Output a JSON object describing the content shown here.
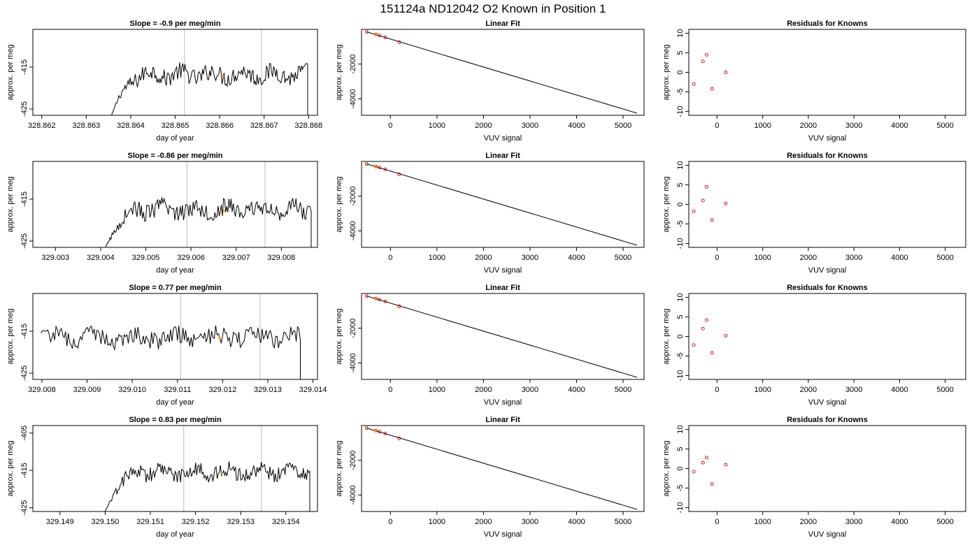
{
  "figure_title": "151124a     ND12042   O2 Known in Position  1",
  "colors": {
    "trace": "#000000",
    "marker": "#cc0000",
    "highlight": "#ff9900",
    "vline": "#bbbbbb"
  },
  "chart_data": [
    {
      "row": 1,
      "col": 1,
      "type": "line",
      "title": "Slope =  -0.9  per meg/min",
      "xlabel": "day of year",
      "ylabel": "approx. per meg",
      "xlim": [
        328.8618,
        328.8682
      ],
      "ylim": [
        -426.5,
        -406
      ],
      "xticks": [
        328.862,
        328.863,
        328.864,
        328.865,
        328.866,
        328.867,
        328.868
      ],
      "xtick_labels": [
        "328.862",
        "328.863",
        "328.864",
        "328.865",
        "328.866",
        "328.867",
        "328.868"
      ],
      "yticks": [
        -415,
        -425
      ],
      "ytick_labels": [
        "-415",
        "-425"
      ],
      "trace_start": 328.86357,
      "trace_end": 328.86798,
      "trace_min": -426.5,
      "trace_max": -411.5,
      "trace_mean": -416.8,
      "vlines": [
        328.86521,
        328.86694
      ],
      "highlight": {
        "x": 328.86608,
        "y": -417.2
      }
    },
    {
      "row": 1,
      "col": 2,
      "type": "scatter",
      "title": "Linear Fit",
      "xlabel": "VUV signal",
      "ylabel": "approx. per meg",
      "xlim": [
        -620,
        5450
      ],
      "ylim": [
        -4950,
        0
      ],
      "xticks": [
        0,
        1000,
        2000,
        3000,
        4000,
        5000
      ],
      "xtick_labels": [
        "0",
        "1000",
        "2000",
        "3000",
        "4000",
        "5000"
      ],
      "yticks": [
        -2000,
        -4000
      ],
      "ytick_labels": [
        "-2000",
        "-4000"
      ],
      "points": [
        [
          -510,
          -150
        ],
        [
          -310,
          -300
        ],
        [
          -230,
          -355
        ],
        [
          -110,
          -455
        ],
        [
          190,
          -745
        ]
      ],
      "highlight_points": [
        [
          -315,
          -310
        ]
      ],
      "fit_line": [
        [
          -510,
          -145
        ],
        [
          5300,
          -4830
        ]
      ]
    },
    {
      "row": 1,
      "col": 3,
      "type": "scatter",
      "title": "Residuals for Knowns",
      "xlabel": "VUV signal",
      "ylabel": "approx. per meg",
      "xlim": [
        -620,
        5450
      ],
      "ylim": [
        -11,
        11
      ],
      "xticks": [
        0,
        1000,
        2000,
        3000,
        4000,
        5000
      ],
      "xtick_labels": [
        "0",
        "1000",
        "2000",
        "3000",
        "4000",
        "5000"
      ],
      "yticks": [
        10,
        5,
        0,
        -5,
        -10
      ],
      "ytick_labels": [
        "10",
        "5",
        "0",
        "-5",
        "-10"
      ],
      "points": [
        [
          -510,
          -3
        ],
        [
          -310,
          2.8
        ],
        [
          -230,
          4.5
        ],
        [
          -110,
          -4.2
        ],
        [
          190,
          0
        ]
      ]
    },
    {
      "row": 2,
      "col": 1,
      "type": "line",
      "title": "Slope =  -0.86  per meg/min",
      "xlabel": "day of year",
      "ylabel": "approx. per meg",
      "xlim": [
        329.0025,
        329.0088
      ],
      "ylim": [
        -426.5,
        -406
      ],
      "xticks": [
        329.003,
        329.004,
        329.005,
        329.006,
        329.007,
        329.008
      ],
      "xtick_labels": [
        "329.003",
        "329.004",
        "329.005",
        "329.006",
        "329.007",
        "329.008"
      ],
      "yticks": [
        -415,
        -425
      ],
      "ytick_labels": [
        "-415",
        "-425"
      ],
      "trace_start": 329.00411,
      "trace_end": 329.00866,
      "trace_min": -426.5,
      "trace_max": -412.5,
      "trace_mean": -417.5,
      "vlines": [
        329.00591,
        329.00764
      ],
      "highlight": {
        "x": 329.00673,
        "y": -417.8
      }
    },
    {
      "row": 2,
      "col": 2,
      "type": "scatter",
      "title": "Linear Fit",
      "xlabel": "VUV signal",
      "ylabel": "approx. per meg",
      "xlim": [
        -620,
        5450
      ],
      "ylim": [
        -4950,
        0
      ],
      "xticks": [
        0,
        1000,
        2000,
        3000,
        4000,
        5000
      ],
      "xtick_labels": [
        "0",
        "1000",
        "2000",
        "3000",
        "4000",
        "5000"
      ],
      "yticks": [
        -2000,
        -4000
      ],
      "ytick_labels": [
        "-2000",
        "-4000"
      ],
      "points": [
        [
          -510,
          -150
        ],
        [
          -310,
          -300
        ],
        [
          -230,
          -355
        ],
        [
          -110,
          -455
        ],
        [
          190,
          -745
        ]
      ],
      "highlight_points": [
        [
          -315,
          -310
        ]
      ],
      "fit_line": [
        [
          -510,
          -145
        ],
        [
          5300,
          -4830
        ]
      ]
    },
    {
      "row": 2,
      "col": 3,
      "type": "scatter",
      "title": "Residuals for Knowns",
      "xlabel": "VUV signal",
      "ylabel": "approx. per meg",
      "xlim": [
        -620,
        5450
      ],
      "ylim": [
        -11,
        11
      ],
      "xticks": [
        0,
        1000,
        2000,
        3000,
        4000,
        5000
      ],
      "xtick_labels": [
        "0",
        "1000",
        "2000",
        "3000",
        "4000",
        "5000"
      ],
      "yticks": [
        10,
        5,
        0,
        -5,
        -10
      ],
      "ytick_labels": [
        "10",
        "5",
        "0",
        "-5",
        "-10"
      ],
      "points": [
        [
          -510,
          -1.8
        ],
        [
          -310,
          1
        ],
        [
          -230,
          4.5
        ],
        [
          -110,
          -4
        ],
        [
          190,
          0.2
        ]
      ]
    },
    {
      "row": 3,
      "col": 1,
      "type": "line",
      "title": "Slope =  0.77  per meg/min",
      "xlabel": "day of year",
      "ylabel": "approx. per meg",
      "xlim": [
        329.0078,
        329.0141
      ],
      "ylim": [
        -426.5,
        -406
      ],
      "xticks": [
        329.008,
        329.009,
        329.01,
        329.011,
        329.012,
        329.013,
        329.014
      ],
      "xtick_labels": [
        "329.008",
        "329.009",
        "329.010",
        "329.011",
        "329.012",
        "329.013",
        "329.014"
      ],
      "yticks": [
        -415,
        -425
      ],
      "ytick_labels": [
        "-415",
        "-425"
      ],
      "trace_start": 329.00798,
      "trace_end": 329.01372,
      "trace_min": -426.5,
      "trace_max": -411.5,
      "trace_mean": -416.5,
      "vlines": [
        329.01107,
        329.01283
      ],
      "highlight": {
        "x": 329.01193,
        "y": -416.5
      }
    },
    {
      "row": 3,
      "col": 2,
      "type": "scatter",
      "title": "Linear Fit",
      "xlabel": "VUV signal",
      "ylabel": "approx. per meg",
      "xlim": [
        -620,
        5450
      ],
      "ylim": [
        -4950,
        0
      ],
      "xticks": [
        0,
        1000,
        2000,
        3000,
        4000,
        5000
      ],
      "xtick_labels": [
        "0",
        "1000",
        "2000",
        "3000",
        "4000",
        "5000"
      ],
      "yticks": [
        -2000,
        -4000
      ],
      "ytick_labels": [
        "-2000",
        "-4000"
      ],
      "points": [
        [
          -510,
          -150
        ],
        [
          -310,
          -300
        ],
        [
          -230,
          -355
        ],
        [
          -110,
          -455
        ],
        [
          190,
          -745
        ]
      ],
      "highlight_points": [
        [
          -315,
          -310
        ]
      ],
      "fit_line": [
        [
          -510,
          -145
        ],
        [
          5300,
          -4830
        ]
      ]
    },
    {
      "row": 3,
      "col": 3,
      "type": "scatter",
      "title": "Residuals for Knowns",
      "xlabel": "VUV signal",
      "ylabel": "approx. per meg",
      "xlim": [
        -620,
        5450
      ],
      "ylim": [
        -11,
        11
      ],
      "xticks": [
        0,
        1000,
        2000,
        3000,
        4000,
        5000
      ],
      "xtick_labels": [
        "0",
        "1000",
        "2000",
        "3000",
        "4000",
        "5000"
      ],
      "yticks": [
        10,
        5,
        0,
        -5,
        -10
      ],
      "ytick_labels": [
        "10",
        "5",
        "0",
        "-5",
        "-10"
      ],
      "points": [
        [
          -510,
          -2.2
        ],
        [
          -310,
          2
        ],
        [
          -230,
          4.2
        ],
        [
          -110,
          -4.2
        ],
        [
          190,
          0.2
        ]
      ]
    },
    {
      "row": 4,
      "col": 1,
      "type": "line",
      "title": "Slope =  0.83  per meg/min",
      "xlabel": "day of year",
      "ylabel": "approx. per meg",
      "xlim": [
        329.1484,
        329.1547
      ],
      "ylim": [
        -426,
        -403
      ],
      "xticks": [
        329.149,
        329.15,
        329.151,
        329.152,
        329.153,
        329.154
      ],
      "xtick_labels": [
        "329.149",
        "329.150",
        "329.151",
        "329.152",
        "329.153",
        "329.154"
      ],
      "yticks": [
        -405,
        -415,
        -425
      ],
      "ytick_labels": [
        "-405",
        "-415",
        "-425"
      ],
      "trace_start": 329.15,
      "trace_end": 329.15453,
      "trace_min": -426,
      "trace_max": -409,
      "trace_mean": -415.5,
      "vlines": [
        329.15174,
        329.15346
      ],
      "highlight": {
        "x": 329.15258,
        "y": -415.8
      }
    },
    {
      "row": 4,
      "col": 2,
      "type": "scatter",
      "title": "Linear Fit",
      "xlabel": "VUV signal",
      "ylabel": "approx. per meg",
      "xlim": [
        -620,
        5450
      ],
      "ylim": [
        -4950,
        0
      ],
      "xticks": [
        0,
        1000,
        2000,
        3000,
        4000,
        5000
      ],
      "xtick_labels": [
        "0",
        "1000",
        "2000",
        "3000",
        "4000",
        "5000"
      ],
      "yticks": [
        -2000,
        -4000
      ],
      "ytick_labels": [
        "-2000",
        "-4000"
      ],
      "points": [
        [
          -510,
          -150
        ],
        [
          -310,
          -300
        ],
        [
          -230,
          -355
        ],
        [
          -110,
          -455
        ],
        [
          190,
          -745
        ]
      ],
      "highlight_points": [
        [
          -315,
          -310
        ]
      ],
      "fit_line": [
        [
          -510,
          -145
        ],
        [
          5300,
          -4830
        ]
      ]
    },
    {
      "row": 4,
      "col": 3,
      "type": "scatter",
      "title": "Residuals for Knowns",
      "xlabel": "VUV signal",
      "ylabel": "approx. per meg",
      "xlim": [
        -620,
        5450
      ],
      "ylim": [
        -11,
        11
      ],
      "xticks": [
        0,
        1000,
        2000,
        3000,
        4000,
        5000
      ],
      "xtick_labels": [
        "0",
        "1000",
        "2000",
        "3000",
        "4000",
        "5000"
      ],
      "yticks": [
        10,
        5,
        0,
        -5,
        -10
      ],
      "ytick_labels": [
        "10",
        "5",
        "0",
        "-5",
        "-10"
      ],
      "points": [
        [
          -510,
          -0.8
        ],
        [
          -310,
          1.5
        ],
        [
          -230,
          2.8
        ],
        [
          -110,
          -4
        ],
        [
          190,
          1
        ]
      ]
    }
  ]
}
